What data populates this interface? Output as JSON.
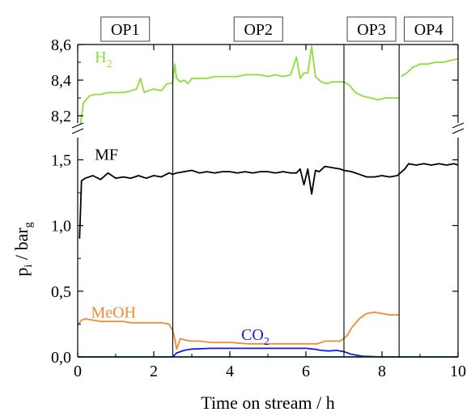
{
  "chart_data": {
    "type": "line",
    "xlabel": "Time on stream / h",
    "ylabel": {
      "main": "p",
      "main_sub": "i",
      "unit": " / bar",
      "unit_sub": "g"
    },
    "xlim": [
      0,
      10
    ],
    "x_ticks": [
      0,
      2,
      4,
      6,
      8,
      10
    ],
    "x_tick_labels": [
      "0",
      "2",
      "4",
      "6",
      "8",
      "10"
    ],
    "y_upper": {
      "range": [
        8.1,
        8.6
      ],
      "ticks": [
        8.2,
        8.4,
        8.6
      ],
      "tick_labels": [
        "8,2",
        "8,4",
        "8,6"
      ]
    },
    "y_lower": {
      "range": [
        0,
        1.7
      ],
      "ticks": [
        0.0,
        0.5,
        1.0,
        1.5
      ],
      "tick_labels": [
        "0,0",
        "0,5",
        "1,0",
        "1,5"
      ]
    },
    "operating_points": [
      {
        "label": "OP1",
        "start": 0,
        "end": 2.5
      },
      {
        "label": "OP2",
        "start": 2.5,
        "end": 7.0
      },
      {
        "label": "OP3",
        "start": 7.0,
        "end": 8.45
      },
      {
        "label": "OP4",
        "start": 8.45,
        "end": 10
      }
    ],
    "series": [
      {
        "name": "H",
        "name_sub": "2",
        "color": "#8fdc3c",
        "panel": "upper",
        "x": [
          0.05,
          0.15,
          0.3,
          0.45,
          0.6,
          0.8,
          1.0,
          1.2,
          1.4,
          1.55,
          1.65,
          1.75,
          1.85,
          2.0,
          2.2,
          2.35,
          2.45,
          2.5,
          2.5,
          2.55,
          2.6,
          2.7,
          2.8,
          2.9,
          3.0,
          3.2,
          3.4,
          3.6,
          3.8,
          4.0,
          4.2,
          4.4,
          4.6,
          4.8,
          5.0,
          5.2,
          5.4,
          5.6,
          5.75,
          5.85,
          5.95,
          6.05,
          6.15,
          6.25,
          6.3,
          6.4,
          6.55,
          6.7,
          6.85,
          7.0,
          7.0,
          7.15,
          7.3,
          7.5,
          7.7,
          7.9,
          8.1,
          8.3,
          8.45,
          8.5,
          8.65,
          8.8,
          9.0,
          9.2,
          9.4,
          9.6,
          9.8,
          10.0
        ],
        "y": [
          8.12,
          8.27,
          8.31,
          8.32,
          8.32,
          8.33,
          8.33,
          8.33,
          8.34,
          8.35,
          8.41,
          8.33,
          8.34,
          8.35,
          8.34,
          8.38,
          8.38,
          8.39,
          8.39,
          8.49,
          8.41,
          8.39,
          8.4,
          8.38,
          8.41,
          8.41,
          8.41,
          8.42,
          8.42,
          8.42,
          8.42,
          8.43,
          8.43,
          8.43,
          8.42,
          8.43,
          8.42,
          8.43,
          8.53,
          8.41,
          8.44,
          8.44,
          8.59,
          8.42,
          8.41,
          8.39,
          8.38,
          8.39,
          8.39,
          8.39,
          8.39,
          8.37,
          8.33,
          8.31,
          8.3,
          8.29,
          8.3,
          8.3,
          8.3,
          8.42,
          8.44,
          8.47,
          8.49,
          8.49,
          8.5,
          8.5,
          8.51,
          8.52
        ]
      },
      {
        "name": "MF",
        "color": "#000000",
        "panel": "lower",
        "x": [
          0.05,
          0.1,
          0.2,
          0.4,
          0.6,
          0.8,
          1.0,
          1.2,
          1.4,
          1.6,
          1.8,
          2.0,
          2.2,
          2.4,
          2.5,
          2.6,
          2.8,
          3.0,
          3.2,
          3.4,
          3.6,
          3.8,
          4.0,
          4.2,
          4.4,
          4.6,
          4.8,
          5.0,
          5.2,
          5.4,
          5.6,
          5.75,
          5.85,
          5.95,
          6.05,
          6.15,
          6.25,
          6.35,
          6.5,
          6.7,
          6.9,
          7.0,
          7.2,
          7.4,
          7.6,
          7.8,
          8.0,
          8.2,
          8.4,
          8.6,
          8.7,
          8.9,
          9.1,
          9.3,
          9.5,
          9.7,
          9.9,
          10.0
        ],
        "y": [
          0.9,
          1.34,
          1.36,
          1.38,
          1.35,
          1.4,
          1.36,
          1.37,
          1.36,
          1.38,
          1.36,
          1.38,
          1.37,
          1.4,
          1.39,
          1.4,
          1.41,
          1.42,
          1.4,
          1.41,
          1.4,
          1.41,
          1.41,
          1.4,
          1.41,
          1.4,
          1.41,
          1.41,
          1.4,
          1.41,
          1.4,
          1.4,
          1.43,
          1.31,
          1.43,
          1.24,
          1.42,
          1.41,
          1.45,
          1.44,
          1.43,
          1.42,
          1.41,
          1.39,
          1.37,
          1.37,
          1.38,
          1.37,
          1.38,
          1.43,
          1.47,
          1.46,
          1.47,
          1.46,
          1.47,
          1.46,
          1.47,
          1.46
        ]
      },
      {
        "name": "MeOH",
        "color": "#f08a34",
        "panel": "lower",
        "x": [
          0.0,
          0.1,
          0.2,
          0.4,
          0.6,
          0.8,
          1.0,
          1.2,
          1.4,
          1.6,
          1.8,
          2.0,
          2.2,
          2.4,
          2.5,
          2.55,
          2.6,
          2.7,
          2.8,
          3.0,
          3.2,
          3.5,
          4.0,
          4.5,
          5.0,
          5.5,
          6.0,
          6.3,
          6.5,
          6.7,
          6.9,
          7.0,
          7.1,
          7.2,
          7.4,
          7.6,
          7.8,
          8.0,
          8.2,
          8.45
        ],
        "y": [
          0.24,
          0.28,
          0.29,
          0.28,
          0.27,
          0.27,
          0.27,
          0.27,
          0.26,
          0.26,
          0.26,
          0.26,
          0.26,
          0.25,
          0.2,
          0.14,
          0.06,
          0.14,
          0.13,
          0.12,
          0.12,
          0.11,
          0.11,
          0.1,
          0.1,
          0.1,
          0.1,
          0.1,
          0.12,
          0.12,
          0.12,
          0.14,
          0.17,
          0.22,
          0.29,
          0.33,
          0.34,
          0.33,
          0.32,
          0.32
        ]
      },
      {
        "name": "CO",
        "name_sub": "2",
        "color": "#1a1adc",
        "panel": "lower",
        "x": [
          0.0,
          1.0,
          2.0,
          2.5,
          2.6,
          2.8,
          3.0,
          3.5,
          4.0,
          4.5,
          5.0,
          5.5,
          6.0,
          6.2,
          6.4,
          6.6,
          6.8,
          7.0,
          7.2,
          7.5,
          8.0,
          9.0,
          10.0
        ],
        "y": [
          0.0,
          0.0,
          0.0,
          0.0,
          0.03,
          0.05,
          0.06,
          0.065,
          0.065,
          0.065,
          0.065,
          0.065,
          0.065,
          0.06,
          0.05,
          0.045,
          0.05,
          0.04,
          0.02,
          0.005,
          0.0,
          0.0,
          0.0
        ]
      },
      {
        "name": "",
        "color": "#1f9a8a",
        "panel": "lower",
        "x": [
          0.0,
          10.0
        ],
        "y": [
          0.0,
          0.0
        ]
      }
    ],
    "annotations": [
      {
        "text": "H",
        "sub": "2",
        "color": "#8fdc3c",
        "x": 0.45,
        "y": 8.5,
        "panel": "upper"
      },
      {
        "text": "MF",
        "sub": "",
        "color": "#000000",
        "x": 0.45,
        "y": 1.5,
        "panel": "lower"
      },
      {
        "text": "MeOH",
        "sub": "",
        "color": "#f08a34",
        "x": 0.35,
        "y": 0.3,
        "panel": "lower"
      },
      {
        "text": "CO",
        "sub": "2",
        "color": "#1a1adc",
        "x": 4.3,
        "y": 0.13,
        "panel": "lower"
      }
    ],
    "axis_break": true,
    "grid": false
  }
}
